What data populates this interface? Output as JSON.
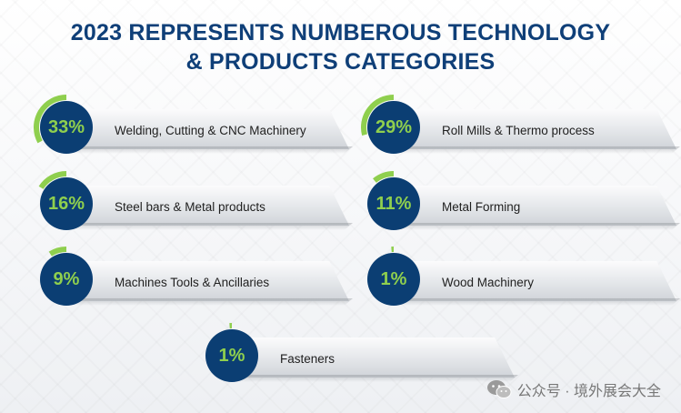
{
  "title_lines": [
    "2023 REPRESENTS NUMBEROUS TECHNOLOGY",
    "& PRODUCTS CATEGORIES"
  ],
  "colors": {
    "title": "#0f3f78",
    "circle": "#0b3e73",
    "accent": "#8fcf4e",
    "text": "#1f1f1f"
  },
  "chart_data": {
    "type": "bar",
    "title": "2023 REPRESENTS NUMBEROUS TECHNOLOGY & PRODUCTS CATEGORIES",
    "categories": [
      "Welding, Cutting & CNC Machinery",
      "Roll Mills & Thermo process",
      "Steel bars & Metal products",
      "Metal Forming",
      "Machines Tools & Ancillaries",
      "Wood Machinery",
      "Fasteners"
    ],
    "values": [
      33,
      29,
      16,
      11,
      9,
      1,
      1
    ],
    "value_labels": [
      "33%",
      "29%",
      "16%",
      "11%",
      "9%",
      "1%",
      "1%"
    ],
    "unit": "%"
  },
  "watermark": {
    "icon": "wechat-icon",
    "text": "公众号 · 境外展会大全"
  }
}
